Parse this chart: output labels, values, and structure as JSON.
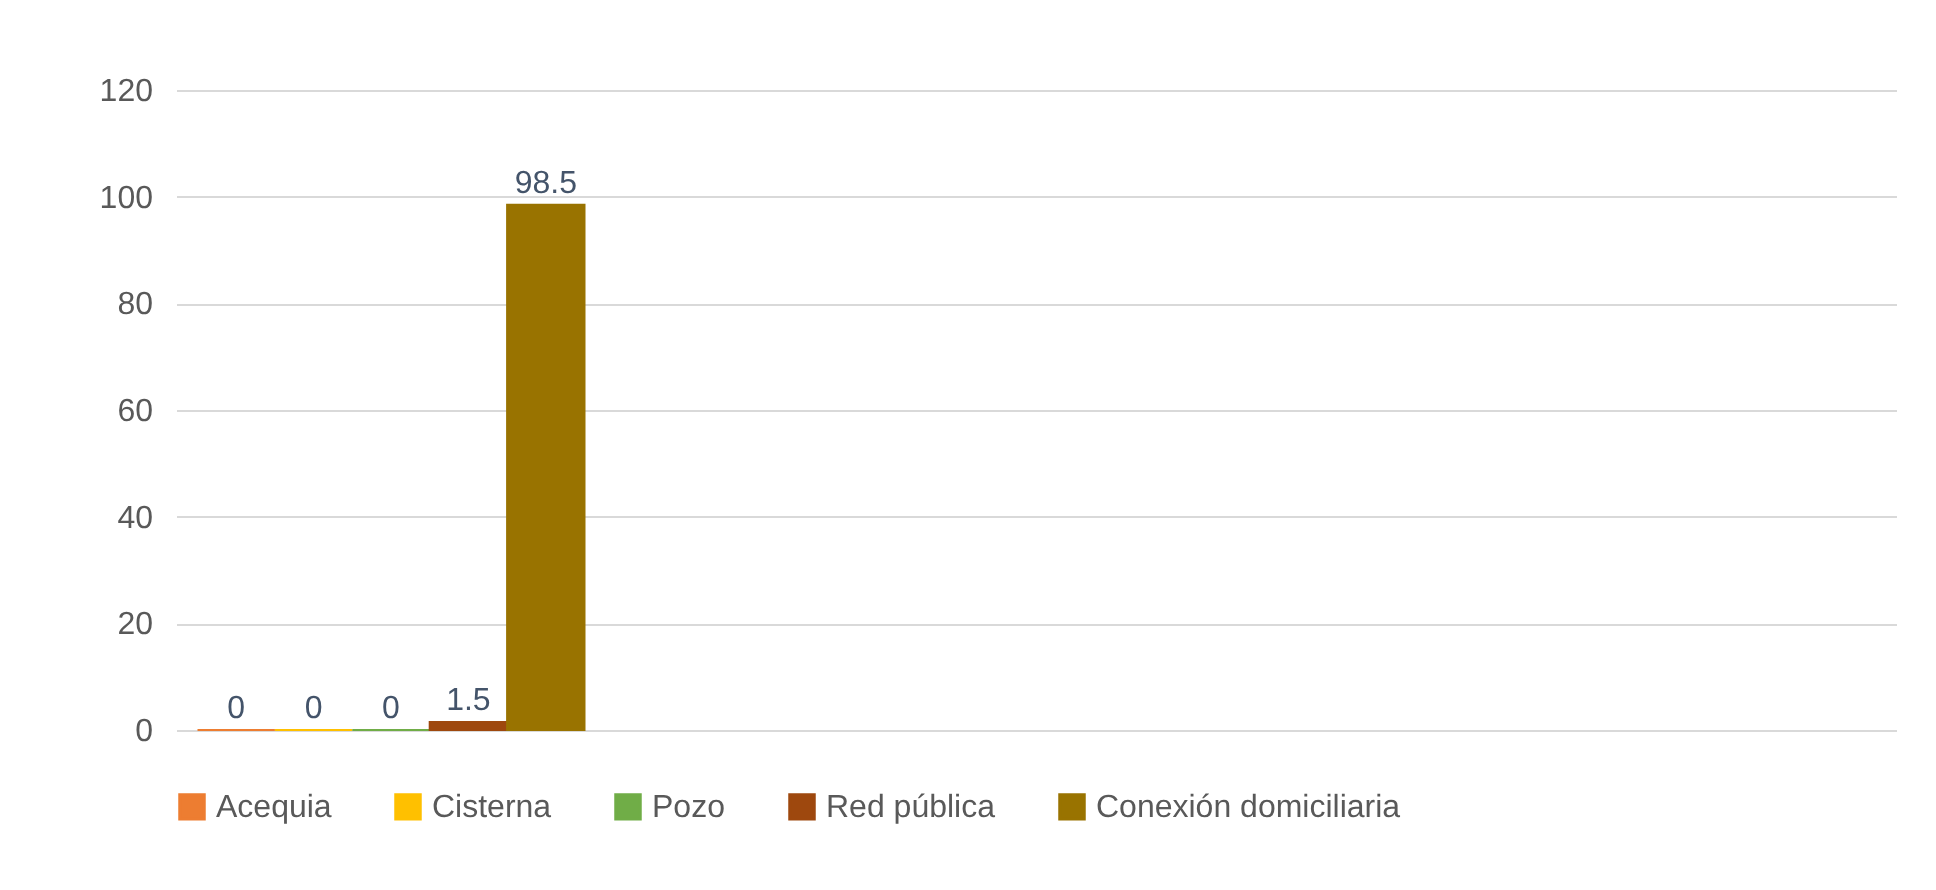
{
  "chart_data": {
    "type": "bar",
    "categories": [
      null,
      null,
      null,
      null
    ],
    "series": [
      {
        "name": "Acequia",
        "color": "#ed7d31",
        "values": [
          0,
          null,
          null,
          null
        ]
      },
      {
        "name": "Cisterna",
        "color": "#ffc000",
        "values": [
          0,
          null,
          null,
          null
        ]
      },
      {
        "name": "Pozo",
        "color": "#70ad47",
        "values": [
          0,
          null,
          null,
          null
        ]
      },
      {
        "name": "Red pública",
        "color": "#9e480e",
        "values": [
          1.5,
          null,
          null,
          null
        ]
      },
      {
        "name": "Conexión domiciliaria",
        "color": "#997300",
        "values": [
          98.5,
          null,
          null,
          null
        ]
      }
    ],
    "ylim": [
      0,
      120
    ],
    "yticks": [
      0,
      20,
      40,
      60,
      80,
      100,
      120
    ],
    "grid": "y",
    "legend": "bottom",
    "data_labels": true
  }
}
